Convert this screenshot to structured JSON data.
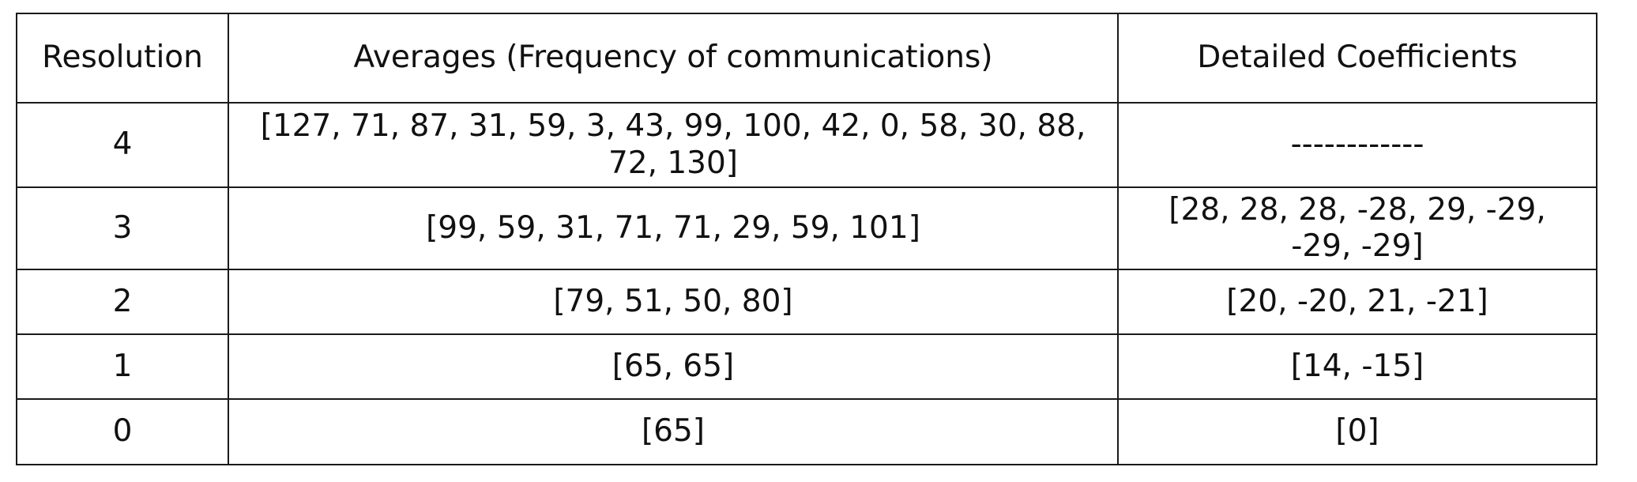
{
  "table": {
    "headers": {
      "resolution": "Resolution",
      "averages": "Averages (Frequency of communications)",
      "details": "Detailed Coefficients"
    },
    "rows": [
      {
        "resolution": "4",
        "averages": "[127, 71, 87, 31, 59, 3, 43, 99, 100, 42, 0, 58, 30, 88, 72, 130]",
        "details": "------------"
      },
      {
        "resolution": "3",
        "averages": "[99, 59, 31, 71, 71, 29, 59, 101]",
        "details": "[28, 28, 28, -28, 29, -29, -29, -29]"
      },
      {
        "resolution": "2",
        "averages": "[79, 51, 50, 80]",
        "details": "[20, -20, 21, -21]"
      },
      {
        "resolution": "1",
        "averages": "[65, 65]",
        "details": "[14, -15]"
      },
      {
        "resolution": "0",
        "averages": "[65]",
        "details": "[0]"
      }
    ]
  }
}
